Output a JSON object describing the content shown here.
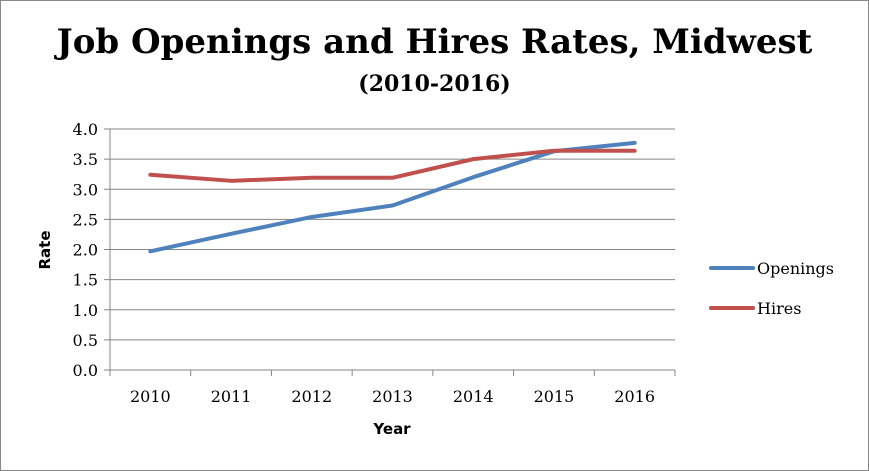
{
  "chart_data": {
    "type": "line",
    "title": "Job Openings and Hires Rates, Midwest",
    "subtitle": "(2010-2016)",
    "xlabel": "Year",
    "ylabel": "Rate",
    "categories": [
      "2010",
      "2011",
      "2012",
      "2013",
      "2014",
      "2015",
      "2016"
    ],
    "ylim": [
      0,
      4.0
    ],
    "yticks": [
      "0.0",
      "0.5",
      "1.0",
      "1.5",
      "2.0",
      "2.5",
      "3.0",
      "3.5",
      "4.0"
    ],
    "grid": true,
    "legend_position": "right",
    "series": [
      {
        "name": "Openings",
        "color": "#4F81BD",
        "values": [
          1.97,
          2.26,
          2.54,
          2.73,
          3.2,
          3.63,
          3.77
        ]
      },
      {
        "name": "Hires",
        "color": "#C0504D",
        "values": [
          3.24,
          3.14,
          3.19,
          3.19,
          3.5,
          3.64,
          3.64
        ]
      }
    ]
  }
}
